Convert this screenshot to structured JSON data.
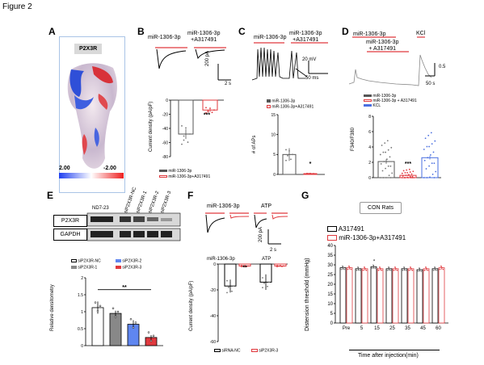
{
  "figure_title": "Figure 2",
  "panels": {
    "A": {
      "letter": "A",
      "protein_label": "P2X3R",
      "scale_min": "2.00",
      "scale_max": "-2.00"
    },
    "B": {
      "letter": "B",
      "trace_labels": [
        "miR-1306-3p",
        "miR-1306-3p\n+A317491"
      ],
      "scalebar_y": "200 pA",
      "scalebar_x": "2 s",
      "ylabel": "Current density (pA/pF)",
      "legend": [
        "miR-1306-3p",
        "miR-1306-3p+A317491"
      ],
      "significance": "***"
    },
    "C": {
      "letter": "C",
      "trace_labels": [
        "miR-1306-3p",
        "miR-1306-3p\n+A317491"
      ],
      "scalebar_y": "20 mV",
      "scalebar_x": "50 ms",
      "legend": [
        "miR-1306-3p",
        "miR-1306-3p+A317491"
      ],
      "ylabel": "# of APs",
      "significance": "*"
    },
    "D": {
      "letter": "D",
      "trace_labels": [
        "miR-1306-3p",
        "miR-1306-3p\n+ A317491",
        "KCl"
      ],
      "scalebar_y": "0.5",
      "scalebar_x": "50 s",
      "legend": [
        "miR-1306-3p",
        "miR-1306-3p + A317491",
        "KCL"
      ],
      "ylabel": "F340/F380",
      "significance": "***"
    },
    "E": {
      "letter": "E",
      "lanes": [
        "ND7-23",
        "siP2X3R-NC",
        "siP2X3R-1",
        "siP2X3R-2",
        "siP2X3R-3"
      ],
      "blot_rows": [
        "P2X3R",
        "GAPDH"
      ],
      "legend": [
        "siP2X3R-NC",
        "siP2X3R-1",
        "siP2X3R-2",
        "siP2X3R-3"
      ],
      "ylabel": "Relative densitometry",
      "significance": "**"
    },
    "F": {
      "letter": "F",
      "trace_labels": [
        "miR-1306-3p",
        "ATP"
      ],
      "scalebar_y": "200 pA",
      "scalebar_x": "2 s",
      "group_labels": [
        "miR-1306-3p",
        "ATP"
      ],
      "ylabel": "Current density (pA/pF)",
      "legend": [
        "siRNA-NC",
        "siP2X3R-3"
      ],
      "significance": "**"
    },
    "G": {
      "letter": "G",
      "subtitle": "CON Rats",
      "legend": [
        "A317491",
        "miR-1306-3p+A317491"
      ],
      "ylabel": "Distension threshold (mmHg)",
      "xlabel": "Time after injection(min)",
      "significance": "*"
    }
  },
  "chart_data": [
    {
      "panel": "B",
      "type": "bar",
      "categories": [
        "miR-1306-3p",
        "miR-1306-3p+A317491"
      ],
      "values": [
        -48,
        -14
      ],
      "errors": [
        7,
        3
      ],
      "ylim": [
        -80,
        0
      ],
      "yticks": [
        0,
        -20,
        -40,
        -60,
        -80
      ],
      "colors": [
        "#555555",
        "#e0393e"
      ]
    },
    {
      "panel": "C",
      "type": "bar",
      "categories": [
        "miR-1306-3p",
        "miR-1306-3p+A317491"
      ],
      "values": [
        5,
        0.2
      ],
      "errors": [
        1.6,
        0.2
      ],
      "ylim": [
        0,
        15
      ],
      "yticks": [
        0,
        5,
        10,
        15
      ],
      "colors": [
        "#555555",
        "#e0393e"
      ]
    },
    {
      "panel": "D",
      "type": "bar",
      "categories": [
        "miR-1306-3p",
        "miR-1306-3p + A317491",
        "KCL"
      ],
      "values": [
        2.1,
        0.3,
        2.6
      ],
      "errors": [
        0.3,
        0.1,
        0.25
      ],
      "ylim": [
        0,
        8
      ],
      "yticks": [
        0,
        2,
        4,
        6,
        8
      ],
      "colors": [
        "#555555",
        "#e0393e",
        "#4a6fe0"
      ]
    },
    {
      "panel": "E",
      "type": "bar",
      "categories": [
        "siP2X3R-NC",
        "siP2X3R-1",
        "siP2X3R-2",
        "siP2X3R-3"
      ],
      "values": [
        1.12,
        0.95,
        0.63,
        0.24
      ],
      "errors": [
        0.18,
        0.08,
        0.12,
        0.07
      ],
      "ylim": [
        0,
        2.0
      ],
      "yticks": [
        0.0,
        0.5,
        1.0,
        1.5,
        2.0
      ],
      "colors": [
        "#ffffff",
        "#888888",
        "#5f86f0",
        "#e0393e"
      ]
    },
    {
      "panel": "F",
      "type": "bar",
      "categories": [
        "miR-1306-3p",
        "ATP"
      ],
      "series": [
        {
          "name": "siRNA-NC",
          "values": [
            -17,
            -14
          ],
          "errors": [
            5,
            6
          ]
        },
        {
          "name": "siP2X3R-3",
          "values": [
            -1.5,
            -1.5
          ],
          "errors": [
            0.8,
            0.8
          ]
        }
      ],
      "ylim": [
        -60,
        0
      ],
      "yticks": [
        0,
        -20,
        -40,
        -60
      ],
      "colors": [
        "#ffffff",
        "#e0393e"
      ]
    },
    {
      "panel": "G",
      "type": "bar",
      "categories": [
        "Pre",
        "5",
        "15",
        "25",
        "35",
        "45",
        "60"
      ],
      "series": [
        {
          "name": "A317491",
          "values": [
            28.5,
            28,
            29,
            28,
            28,
            27.5,
            28
          ],
          "errors": [
            1,
            1,
            1,
            1,
            1,
            1,
            1
          ]
        },
        {
          "name": "miR-1306-3p+A317491",
          "values": [
            28.5,
            28,
            28,
            28,
            28,
            28,
            28.5
          ],
          "errors": [
            1,
            1,
            1,
            1,
            1,
            1,
            1
          ]
        }
      ],
      "ylim": [
        0,
        40
      ],
      "yticks": [
        0,
        5,
        10,
        15,
        20,
        25,
        30,
        35,
        40
      ],
      "colors": [
        "#ffffff",
        "#e0393e"
      ]
    }
  ]
}
